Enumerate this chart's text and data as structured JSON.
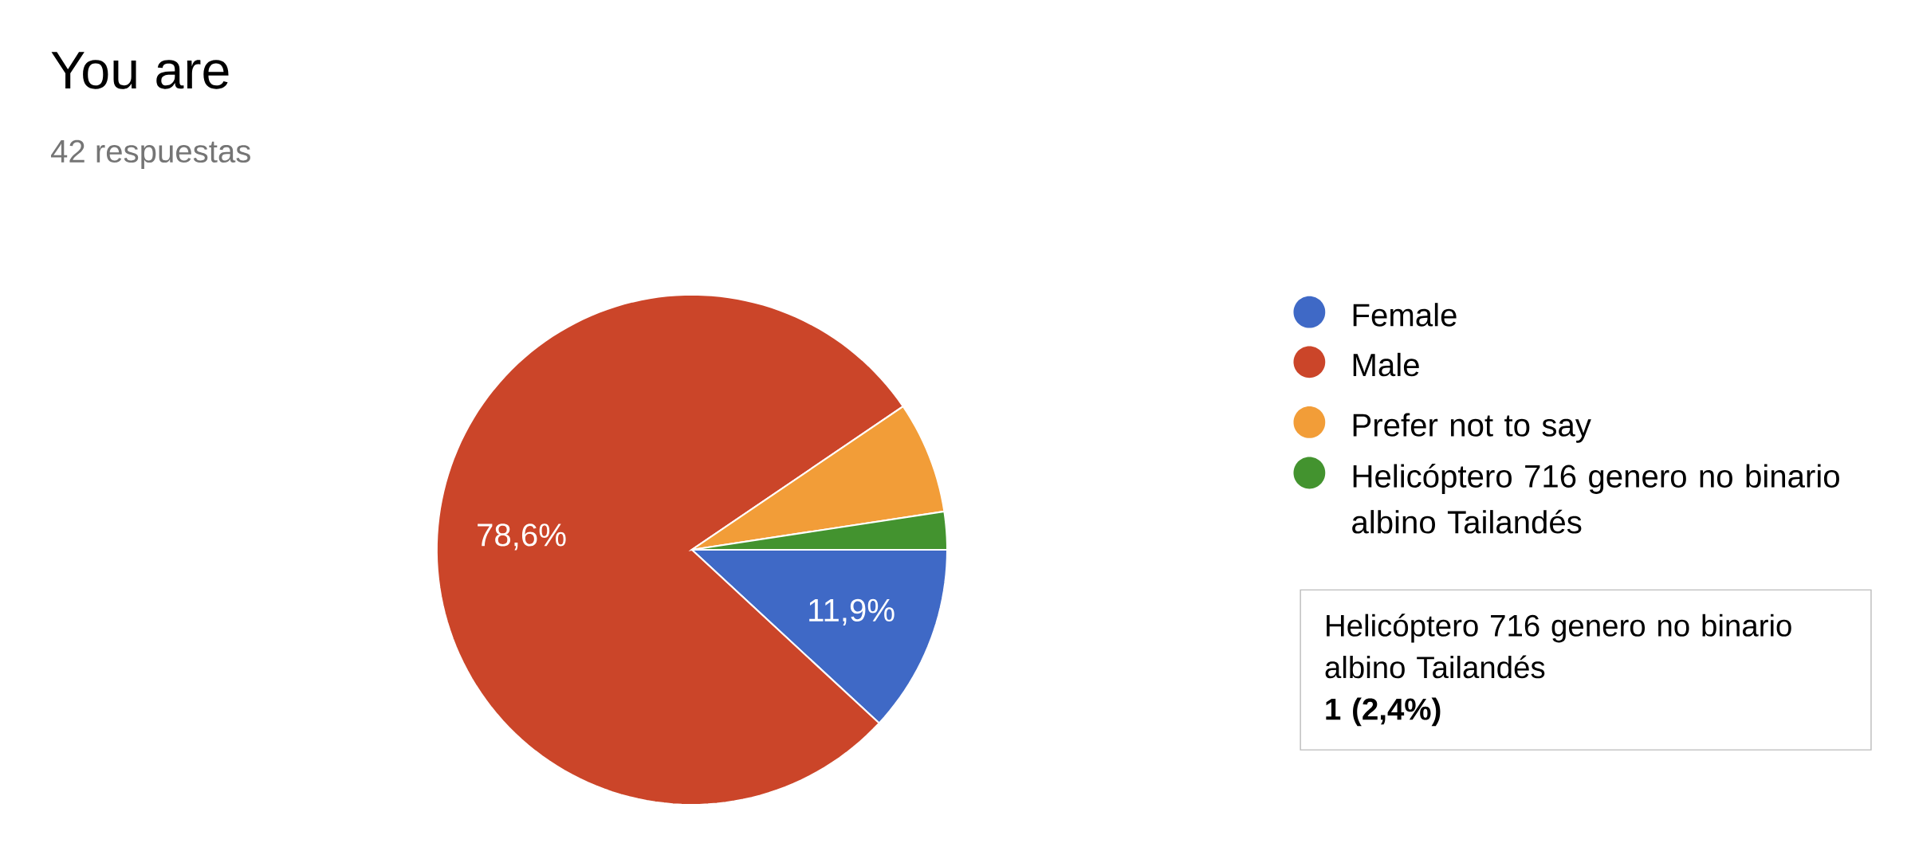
{
  "chart_data": {
    "type": "pie",
    "title": "You are",
    "subtitle": "42 respuestas",
    "categories": [
      "Female",
      "Male",
      "Prefer not to say",
      "Helicóptero 716 genero no binario albino Tailandés"
    ],
    "values": [
      11.9,
      78.6,
      7.1,
      2.4
    ],
    "colors": [
      "#3f69c6",
      "#cb4529",
      "#f29d38",
      "#43932f"
    ],
    "value_labels": [
      "11,9%",
      "78,6%",
      null,
      null
    ],
    "legend": "right",
    "annotations": [
      "Helicóptero 716 genero no binario albino Tailandés",
      "1 (2,4%)"
    ]
  }
}
